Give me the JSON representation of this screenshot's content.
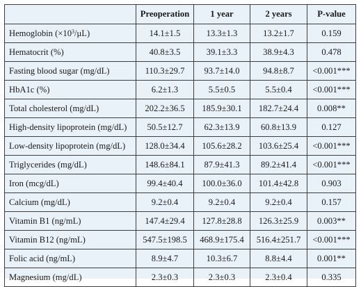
{
  "table": {
    "headers": [
      "",
      "Preoperation",
      "1 year",
      "2 years",
      "P-value"
    ],
    "rows": [
      {
        "label": "Hemoglobin (×10",
        "label_sup": "3",
        "label_tail": "/μL)",
        "values": [
          "14.1±1.5",
          "13.3±1.3",
          "13.2±1.7",
          "0.159"
        ]
      },
      {
        "label": "Hematocrit (%)",
        "values": [
          "40.8±3.5",
          "39.1±3.3",
          "38.9±4.3",
          "0.478"
        ]
      },
      {
        "label": "Fasting blood sugar (mg/dL)",
        "values": [
          "110.3±29.7",
          "93.7±14.0",
          "94.8±8.7",
          "<0.001***"
        ]
      },
      {
        "label": "HbA1c (%)",
        "values": [
          "6.2±1.3",
          "5.5±0.5",
          "5.5±0.4",
          "<0.001***"
        ]
      },
      {
        "label": "Total cholesterol (mg/dL)",
        "values": [
          "202.2±36.5",
          "185.9±30.1",
          "182.7±24.4",
          "0.008**"
        ]
      },
      {
        "label": "High-density lipoprotein (mg/dL)",
        "values": [
          "50.5±12.7",
          "62.3±13.9",
          "60.8±13.9",
          "0.127"
        ]
      },
      {
        "label": "Low-density lipoprotein (mg/dL)",
        "values": [
          "128.0±34.4",
          "105.6±28.2",
          "103.6±25.4",
          "<0.001***"
        ]
      },
      {
        "label": "Triglycerides (mg/dL)",
        "values": [
          "148.6±84.1",
          "87.9±41.3",
          "89.2±41.4",
          "<0.001***"
        ]
      },
      {
        "label": "Iron (mcg/dL)",
        "values": [
          "99.4±40.4",
          "100.0±36.0",
          "101.4±42.8",
          "0.903"
        ]
      },
      {
        "label": "Calcium (mg/dL)",
        "values": [
          "9.2±0.4",
          "9.2±0.4",
          "9.2±0.4",
          "0.157"
        ]
      },
      {
        "label": "Vitamin B1 (ng/mL)",
        "values": [
          "147.4±29.4",
          "127.8±28.8",
          "126.3±25.9",
          "0.003**"
        ]
      },
      {
        "label": "Vitamin B12 (ng/mL)",
        "values": [
          "547.5±198.5",
          "468.9±175.4",
          "516.4±251.7",
          "<0.001***"
        ]
      },
      {
        "label": "Folic acid (ng/mL)",
        "values": [
          "8.9±4.7",
          "10.3±6.7",
          "8.8±4.4",
          "0.001**"
        ]
      },
      {
        "label": "Magnesium (mg/dL)",
        "values": [
          "2.3±0.3",
          "2.3±0.3",
          "2.3±0.4",
          "0.335"
        ]
      }
    ]
  },
  "colors": {
    "table_background": "#e9f1f9",
    "border": "#3d3d3d",
    "text": "#1a1a1a"
  }
}
